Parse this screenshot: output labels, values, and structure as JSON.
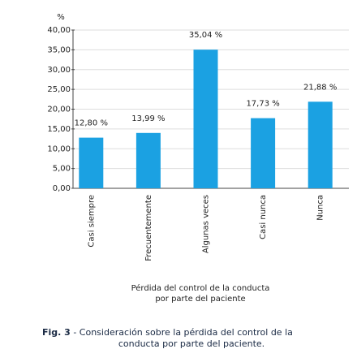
{
  "chart_data": {
    "type": "bar",
    "ylabel": "%",
    "categories": [
      "Casi siempre",
      "Frecuentemente",
      "Algunas veces",
      "Casi nunca",
      "Nunca"
    ],
    "values": [
      12.8,
      13.99,
      35.04,
      17.73,
      21.88
    ],
    "value_labels": [
      "12,80 %",
      "13,99 %",
      "35,04 %",
      "17,73 %",
      "21,88 %"
    ],
    "color": "#1ba1e2",
    "ylim": [
      0,
      40
    ],
    "yticks": [
      {
        "value": 0,
        "label": "0,00"
      },
      {
        "value": 5,
        "label": "5,00"
      },
      {
        "value": 10,
        "label": "10,00"
      },
      {
        "value": 15,
        "label": "15,00"
      },
      {
        "value": 20,
        "label": "20,00"
      },
      {
        "value": 25,
        "label": "25,00"
      },
      {
        "value": 30,
        "label": "30,00"
      },
      {
        "value": 35,
        "label": "35,00"
      },
      {
        "value": 40,
        "label": "40,00"
      }
    ],
    "grid": true,
    "xlabel": [
      "Pérdida del control de la conducta",
      "por parte del paciente"
    ]
  },
  "caption": {
    "label": "Fig. 3",
    "text": " - Consideración sobre la pérdida del control de la",
    "text2": "conducta por parte del paciente."
  }
}
